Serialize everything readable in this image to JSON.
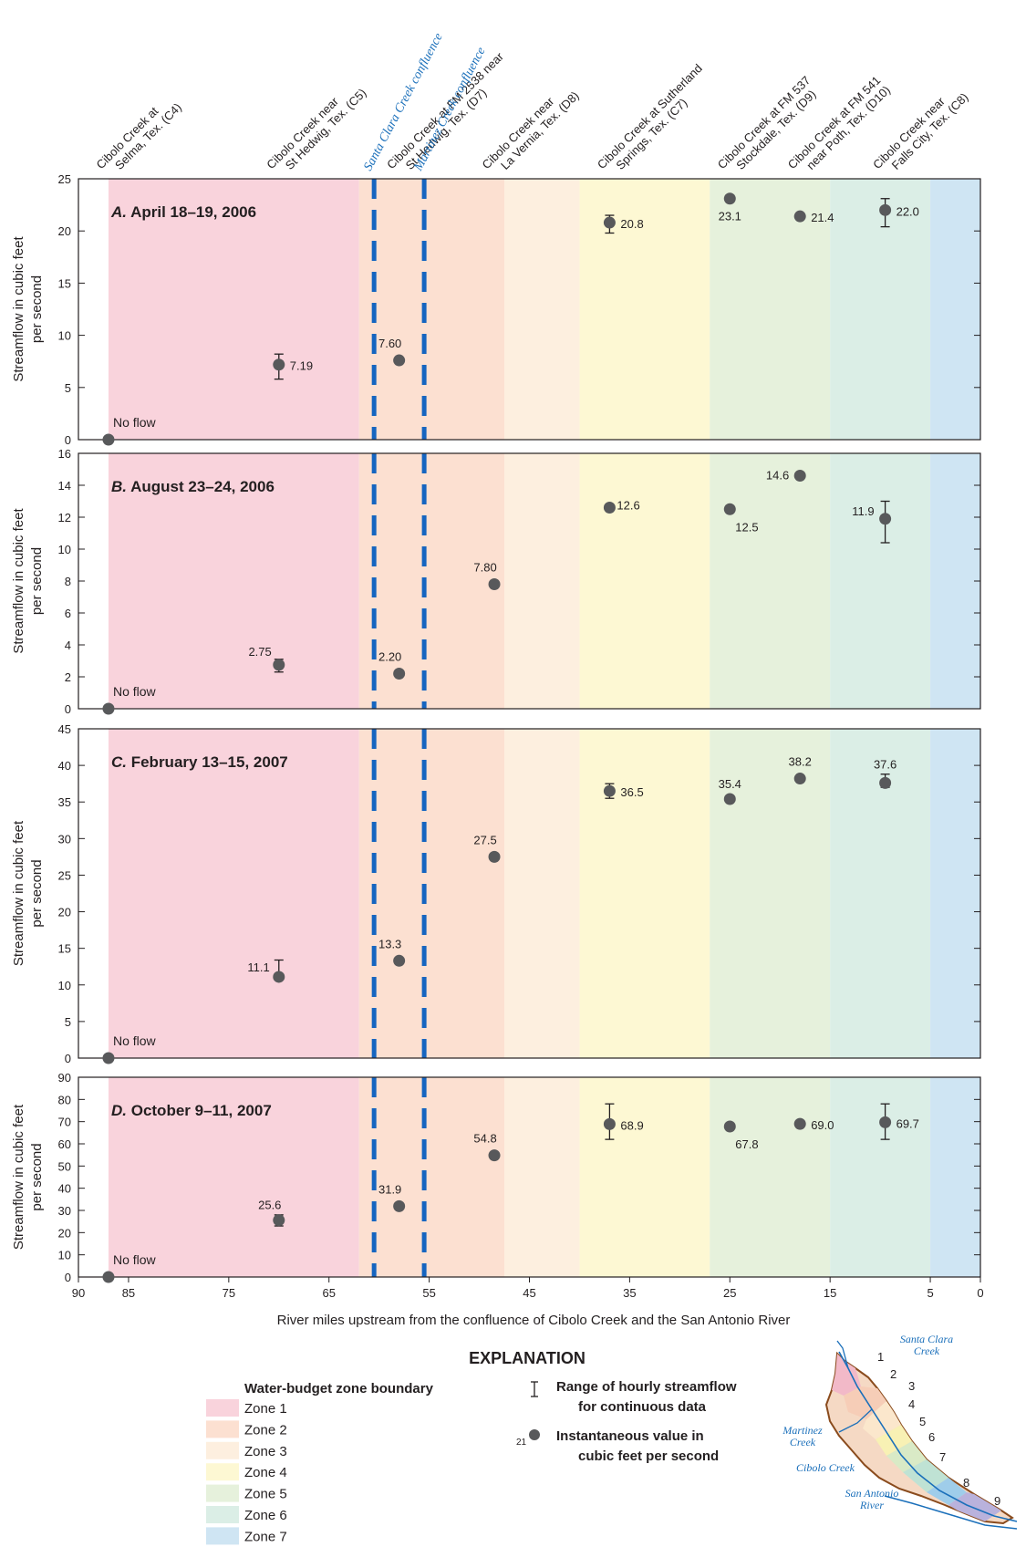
{
  "sites": [
    {
      "id": "C4",
      "line1": "Cibolo Creek at",
      "line2": "Selma, Tex. (C4)",
      "x": 87
    },
    {
      "id": "C5",
      "line1": "Cibolo Creek near",
      "line2": "St Hedwig, Tex. (C5)",
      "x": 70
    },
    {
      "id": "D7",
      "line1": "Cibolo Creek at FM 2538 near",
      "line2": "St Hedwig, Tex. (D7)",
      "x": 58
    },
    {
      "id": "D8",
      "line1": "Cibolo Creek near",
      "line2": "La Vernia, Tex. (D8)",
      "x": 48.5
    },
    {
      "id": "C7",
      "line1": "Cibolo Creek at Sutherland",
      "line2": "Springs, Tex. (C7)",
      "x": 37
    },
    {
      "id": "D9",
      "line1": "Cibolo Creek at FM 537",
      "line2": "Stockdale, Tex. (D9)",
      "x": 25
    },
    {
      "id": "D10",
      "line1": "Cibolo Creek at FM 541",
      "line2": "near Poth, Tex. (D10)",
      "x": 18
    },
    {
      "id": "C8",
      "line1": "Cibolo Creek near",
      "line2": "Falls City, Tex. (C8)",
      "x": 9.5
    }
  ],
  "confluences": [
    {
      "label": "Santa Clara Creek confluence",
      "x": 60.5
    },
    {
      "label": "Martinez Creek confluence",
      "x": 55.5
    }
  ],
  "zones": [
    {
      "name": "Zone 1",
      "from": 87,
      "to": 62,
      "color": "#f9d3dc"
    },
    {
      "name": "Zone 2",
      "from": 62,
      "to": 47.5,
      "color": "#fce0d1"
    },
    {
      "name": "Zone 3",
      "from": 47.5,
      "to": 40,
      "color": "#fdefdf"
    },
    {
      "name": "Zone 4",
      "from": 40,
      "to": 27,
      "color": "#fdf8d3"
    },
    {
      "name": "Zone 5",
      "from": 27,
      "to": 15,
      "color": "#e6f1dc"
    },
    {
      "name": "Zone 6",
      "from": 15,
      "to": 5,
      "color": "#dbeee6"
    },
    {
      "name": "Zone 7",
      "from": 5,
      "to": 0,
      "color": "#cfe5f3"
    }
  ],
  "chart_data": [
    {
      "type": "scatter",
      "title": "A. April 18–19, 2006",
      "title_letter": "A.",
      "title_date": "April 18–19, 2006",
      "ylabel": "Streamflow in cubic feet per second",
      "xlim": [
        90,
        0
      ],
      "ylim": [
        0,
        25
      ],
      "yticks": [
        0,
        5,
        10,
        15,
        20,
        25
      ],
      "no_flow_label": "No flow",
      "points": [
        {
          "site": "C4",
          "x": 87,
          "y": 0,
          "label": ""
        },
        {
          "site": "C5",
          "x": 70,
          "y": 7.19,
          "label": "7.19",
          "range": [
            5.8,
            8.2
          ]
        },
        {
          "site": "D7",
          "x": 58,
          "y": 7.6,
          "label": "7.60"
        },
        {
          "site": "C7",
          "x": 37,
          "y": 20.8,
          "label": "20.8",
          "range": [
            19.8,
            21.5
          ]
        },
        {
          "site": "D9",
          "x": 25,
          "y": 23.1,
          "label": "23.1"
        },
        {
          "site": "D10",
          "x": 18,
          "y": 21.4,
          "label": "21.4"
        },
        {
          "site": "C8",
          "x": 9.5,
          "y": 22.0,
          "label": "22.0",
          "range": [
            20.4,
            23.1
          ]
        }
      ]
    },
    {
      "type": "scatter",
      "title": "B. August 23–24, 2006",
      "title_letter": "B.",
      "title_date": "August 23–24, 2006",
      "ylabel": "Streamflow in cubic feet per second",
      "xlim": [
        90,
        0
      ],
      "ylim": [
        0,
        16
      ],
      "yticks": [
        0,
        2,
        4,
        6,
        8,
        10,
        12,
        14,
        16
      ],
      "no_flow_label": "No flow",
      "points": [
        {
          "site": "C4",
          "x": 87,
          "y": 0,
          "label": ""
        },
        {
          "site": "C5",
          "x": 70,
          "y": 2.75,
          "label": "2.75",
          "range": [
            2.3,
            3.1
          ]
        },
        {
          "site": "D7",
          "x": 58,
          "y": 2.2,
          "label": "2.20"
        },
        {
          "site": "D8",
          "x": 48.5,
          "y": 7.8,
          "label": "7.80"
        },
        {
          "site": "C7",
          "x": 37,
          "y": 12.6,
          "label": "12.6"
        },
        {
          "site": "D9",
          "x": 25,
          "y": 12.5,
          "label": "12.5"
        },
        {
          "site": "D10",
          "x": 18,
          "y": 14.6,
          "label": "14.6"
        },
        {
          "site": "C8",
          "x": 9.5,
          "y": 11.9,
          "label": "11.9",
          "range": [
            10.4,
            13.0
          ]
        }
      ]
    },
    {
      "type": "scatter",
      "title": "C. February 13–15, 2007",
      "title_letter": "C.",
      "title_date": "February 13–15, 2007",
      "ylabel": "Streamflow in cubic feet per second",
      "xlim": [
        90,
        0
      ],
      "ylim": [
        0,
        45
      ],
      "yticks": [
        0,
        5,
        10,
        15,
        20,
        25,
        30,
        35,
        40,
        45
      ],
      "no_flow_label": "No flow",
      "points": [
        {
          "site": "C4",
          "x": 87,
          "y": 0,
          "label": ""
        },
        {
          "site": "C5",
          "x": 70,
          "y": 11.1,
          "label": "11.1",
          "range": [
            11.0,
            13.4
          ]
        },
        {
          "site": "D7",
          "x": 58,
          "y": 13.3,
          "label": "13.3"
        },
        {
          "site": "D8",
          "x": 48.5,
          "y": 27.5,
          "label": "27.5"
        },
        {
          "site": "C7",
          "x": 37,
          "y": 36.5,
          "label": "36.5",
          "range": [
            35.5,
            37.5
          ]
        },
        {
          "site": "D9",
          "x": 25,
          "y": 35.4,
          "label": "35.4"
        },
        {
          "site": "D10",
          "x": 18,
          "y": 38.2,
          "label": "38.2"
        },
        {
          "site": "C8",
          "x": 9.5,
          "y": 37.6,
          "label": "37.6",
          "range": [
            37.0,
            38.8
          ]
        }
      ]
    },
    {
      "type": "scatter",
      "title": "D. October 9–11, 2007",
      "title_letter": "D.",
      "title_date": "October 9–11, 2007",
      "ylabel": "Streamflow in cubic feet per second",
      "xlim": [
        90,
        0
      ],
      "ylim": [
        0,
        90
      ],
      "yticks": [
        0,
        10,
        20,
        30,
        40,
        50,
        60,
        70,
        80,
        90
      ],
      "no_flow_label": "No flow",
      "points": [
        {
          "site": "C4",
          "x": 87,
          "y": 0,
          "label": ""
        },
        {
          "site": "C5",
          "x": 70,
          "y": 25.6,
          "label": "25.6",
          "range": [
            23,
            28
          ]
        },
        {
          "site": "D7",
          "x": 58,
          "y": 31.9,
          "label": "31.9"
        },
        {
          "site": "D8",
          "x": 48.5,
          "y": 54.8,
          "label": "54.8"
        },
        {
          "site": "C7",
          "x": 37,
          "y": 68.9,
          "label": "68.9",
          "range": [
            62,
            78
          ]
        },
        {
          "site": "D9",
          "x": 25,
          "y": 67.8,
          "label": "67.8"
        },
        {
          "site": "D10",
          "x": 18,
          "y": 69.0,
          "label": "69.0"
        },
        {
          "site": "C8",
          "x": 9.5,
          "y": 69.7,
          "label": "69.7",
          "range": [
            62,
            78
          ]
        }
      ]
    }
  ],
  "x_axis": {
    "label": "River miles upstream from the confluence of Cibolo Creek and the San Antonio River",
    "ticks": [
      90,
      85,
      75,
      65,
      55,
      45,
      35,
      25,
      15,
      5,
      0
    ]
  },
  "explanation": {
    "title": "EXPLANATION",
    "zone_heading": "Water-budget zone boundary",
    "range_label_1": "Range of hourly streamflow",
    "range_label_2": "for continuous data",
    "inst_label_1": "Instantaneous value in",
    "inst_label_2": "cubic feet per second",
    "inst_example": "21"
  },
  "inset_map": {
    "labels": [
      "Santa Clara",
      "Creek",
      "Martinez",
      "Creek",
      "Cibolo Creek",
      "San Antonio",
      "River"
    ],
    "zone_numbers": [
      "1",
      "2",
      "3",
      "4",
      "5",
      "6",
      "7",
      "8",
      "9"
    ]
  }
}
